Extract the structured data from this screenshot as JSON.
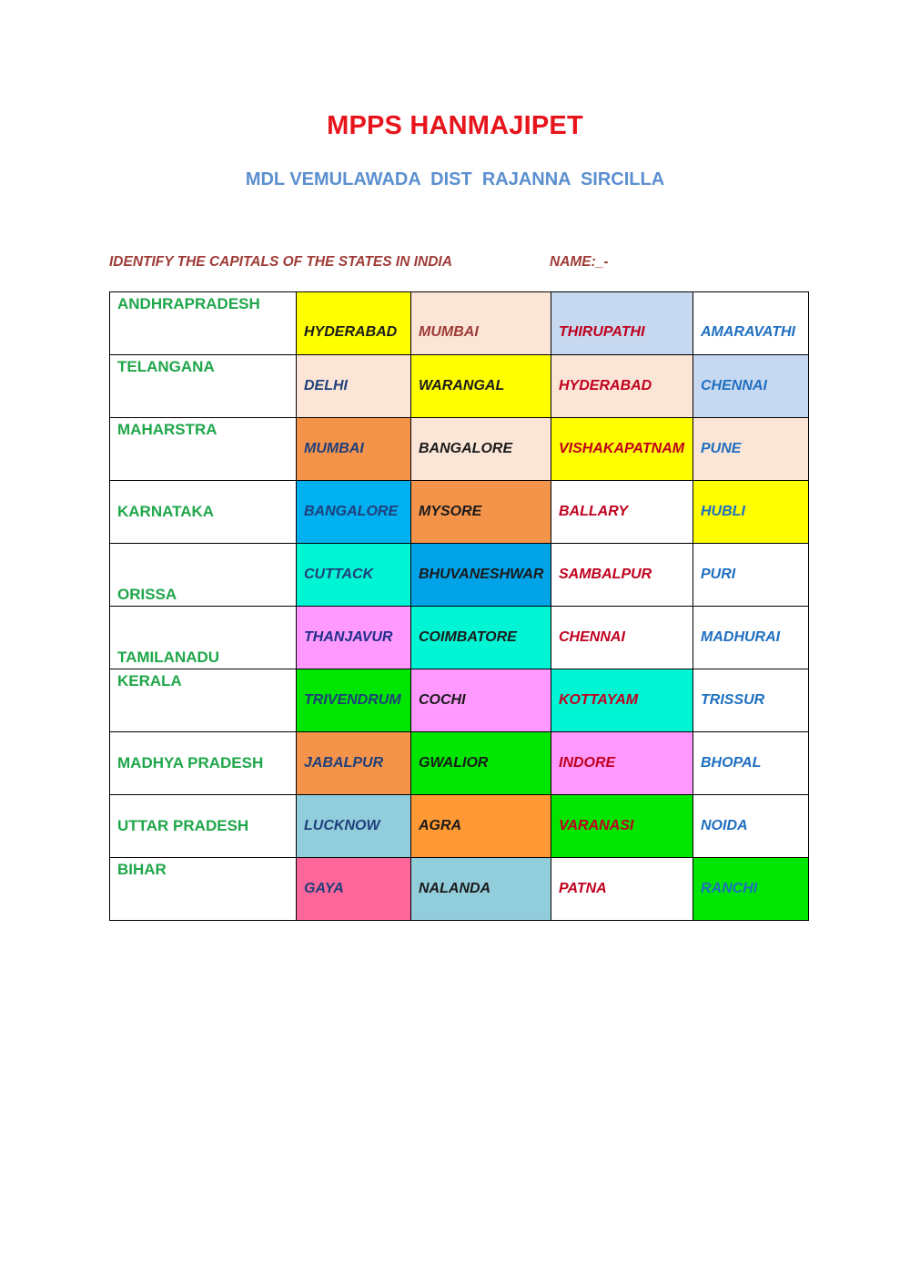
{
  "header": {
    "title": "MPPS HANMAJIPET",
    "subtitle": "MDL VEMULAWADA  DIST  RAJANNA  SIRCILLA"
  },
  "worksheet": {
    "instruction": "IDENTIFY THE CAPITALS OF THE STATES IN INDIA",
    "name_label": "NAME:_-"
  },
  "rows": [
    {
      "state": "ANDHRAPRADESH",
      "options": [
        {
          "text": "HYDERABAD",
          "bg": "#ffff00",
          "color": "#1a1a1a"
        },
        {
          "text": "MUMBAI",
          "bg": "#fbe5d6",
          "color": "#9e3b37"
        },
        {
          "text": "THIRUPATHI",
          "bg": "#c6d9f0",
          "color": "#c0001e"
        },
        {
          "text": "AMARAVATHI",
          "bg": "#ffffff",
          "color": "#1f6fc0"
        }
      ]
    },
    {
      "state": "TELANGANA",
      "options": [
        {
          "text": "DELHI",
          "bg": "#fbe5d6",
          "color": "#1f3f7a"
        },
        {
          "text": "WARANGAL",
          "bg": "#ffff00",
          "color": "#1a1a1a"
        },
        {
          "text": "HYDERABAD",
          "bg": "#fbe5d6",
          "color": "#c0001e"
        },
        {
          "text": "CHENNAI",
          "bg": "#c6d9f0",
          "color": "#1f6fc0"
        }
      ]
    },
    {
      "state": "MAHARSTRA",
      "options": [
        {
          "text": "MUMBAI",
          "bg": "#f4944b",
          "color": "#1f3f7a"
        },
        {
          "text": "BANGALORE",
          "bg": "#fbe5d6",
          "color": "#1a1a1a"
        },
        {
          "text": "VISHAKAPATNAM",
          "bg": "#ffff00",
          "color": "#c0001e"
        },
        {
          "text": "PUNE",
          "bg": "#fbe5d6",
          "color": "#1f6fc0"
        }
      ]
    },
    {
      "state": "KARNATAKA",
      "options": [
        {
          "text": "BANGALORE",
          "bg": "#00b0f0",
          "color": "#1f3f7a"
        },
        {
          "text": "MYSORE",
          "bg": "#f4944b",
          "color": "#1a1a1a"
        },
        {
          "text": "BALLARY",
          "bg": "#ffffff",
          "color": "#c0001e"
        },
        {
          "text": "HUBLI",
          "bg": "#ffff00",
          "color": "#1f6fc0"
        }
      ]
    },
    {
      "state": "ORISSA",
      "options": [
        {
          "text": "CUTTACK",
          "bg": "#00f5d4",
          "color": "#1f3f7a"
        },
        {
          "text": "BHUVANESHWAR",
          "bg": "#00a2e8",
          "color": "#1a1a1a"
        },
        {
          "text": "SAMBALPUR",
          "bg": "#ffffff",
          "color": "#c0001e"
        },
        {
          "text": "PURI",
          "bg": "#ffffff",
          "color": "#1f6fc0"
        }
      ]
    },
    {
      "state": "TAMILANADU",
      "options": [
        {
          "text": "THANJAVUR",
          "bg": "#ff99ff",
          "color": "#1f2f8a"
        },
        {
          "text": "COIMBATORE",
          "bg": "#00f5d4",
          "color": "#1a1a1a"
        },
        {
          "text": "CHENNAI",
          "bg": "#ffffff",
          "color": "#c0001e"
        },
        {
          "text": "MADHURAI",
          "bg": "#ffffff",
          "color": "#1f6fc0"
        }
      ]
    },
    {
      "state": "KERALA",
      "options": [
        {
          "text": "TRIVENDRUM",
          "bg": "#00e600",
          "color": "#1f3f7a"
        },
        {
          "text": "COCHI",
          "bg": "#ff99ff",
          "color": "#1a1a1a"
        },
        {
          "text": "KOTTAYAM",
          "bg": "#00f5d4",
          "color": "#c0001e"
        },
        {
          "text": "TRISSUR",
          "bg": "#ffffff",
          "color": "#1f6fc0"
        }
      ]
    },
    {
      "state": "MADHYA PRADESH",
      "options": [
        {
          "text": "JABALPUR",
          "bg": "#f4944b",
          "color": "#1f3f7a"
        },
        {
          "text": "GWALIOR",
          "bg": "#00e600",
          "color": "#1a1a1a"
        },
        {
          "text": "INDORE",
          "bg": "#ff99ff",
          "color": "#c0001e"
        },
        {
          "text": "BHOPAL",
          "bg": "#ffffff",
          "color": "#1f6fc0"
        }
      ]
    },
    {
      "state": "UTTAR PRADESH",
      "options": [
        {
          "text": "LUCKNOW",
          "bg": "#92cddc",
          "color": "#1f3f7a"
        },
        {
          "text": "AGRA",
          "bg": "#ff9933",
          "color": "#1a1a1a"
        },
        {
          "text": "VARANASI",
          "bg": "#00e600",
          "color": "#c0001e"
        },
        {
          "text": "NOIDA",
          "bg": "#ffffff",
          "color": "#1f6fc0"
        }
      ]
    },
    {
      "state": "BIHAR",
      "options": [
        {
          "text": "GAYA",
          "bg": "#ff6699",
          "color": "#1f3f7a"
        },
        {
          "text": "NALANDA",
          "bg": "#92cddc",
          "color": "#1a1a1a"
        },
        {
          "text": "PATNA",
          "bg": "#ffffff",
          "color": "#c0001e"
        },
        {
          "text": "RANCHI",
          "bg": "#00e600",
          "color": "#1f6fc0"
        }
      ]
    }
  ]
}
